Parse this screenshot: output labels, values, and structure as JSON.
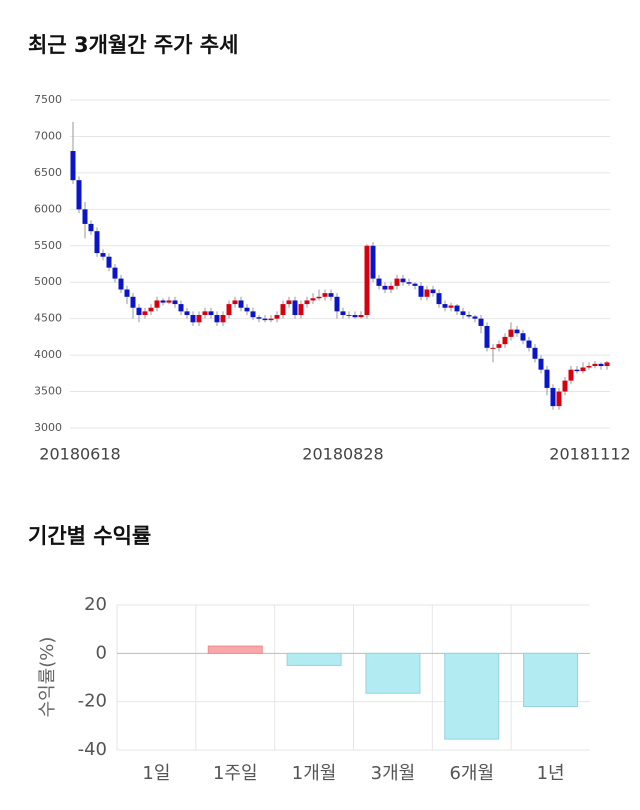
{
  "chart_data": [
    {
      "type": "candlestick",
      "title": "최근 3개월간 주가 추세",
      "categories": [
        "20180618",
        null,
        null,
        null,
        null,
        null,
        null,
        null,
        null,
        null,
        null,
        null,
        null,
        null,
        null,
        null,
        null,
        null,
        null,
        null,
        null,
        null,
        null,
        null,
        null,
        null,
        null,
        null,
        null,
        null,
        null,
        null,
        null,
        null,
        null,
        null,
        null,
        null,
        null,
        null,
        null,
        null,
        null,
        null,
        null,
        "20180828",
        null,
        null,
        null,
        null,
        null,
        null,
        null,
        null,
        null,
        null,
        null,
        null,
        null,
        null,
        null,
        null,
        null,
        null,
        null,
        null,
        null,
        null,
        null,
        null,
        null,
        null,
        null,
        null,
        null,
        null,
        null,
        null,
        null,
        null,
        null,
        null,
        null,
        null,
        null,
        null,
        null,
        null,
        null,
        "20181112"
      ],
      "open": [
        6800,
        6400,
        6000,
        5800,
        5700,
        5400,
        5350,
        5200,
        5050,
        4900,
        4800,
        4650,
        4550,
        4600,
        4650,
        4750,
        4720,
        4750,
        4700,
        4600,
        4550,
        4450,
        4550,
        4600,
        4550,
        4450,
        4550,
        4700,
        4750,
        4650,
        4600,
        4520,
        4500,
        4480,
        4500,
        4550,
        4700,
        4750,
        4550,
        4700,
        4750,
        4780,
        4800,
        4850,
        4800,
        4600,
        4550,
        4550,
        4520,
        4550,
        5500,
        5050,
        4950,
        4900,
        4950,
        5050,
        5000,
        4980,
        4950,
        4800,
        4900,
        4850,
        4700,
        4650,
        4680,
        4600,
        4550,
        4530,
        4500,
        4400,
        4100,
        4100,
        4150,
        4250,
        4350,
        4300,
        4200,
        4100,
        3950,
        3800,
        3550,
        3300,
        3500,
        3650,
        3800,
        3780,
        3830,
        3850,
        3880,
        3850
      ],
      "high": [
        7200,
        6450,
        6100,
        5850,
        5750,
        5450,
        5400,
        5250,
        5100,
        4950,
        4850,
        4700,
        4650,
        4700,
        4800,
        4780,
        4800,
        4800,
        4750,
        4650,
        4600,
        4600,
        4650,
        4650,
        4600,
        4600,
        4750,
        4800,
        4800,
        4700,
        4650,
        4550,
        4550,
        4550,
        4600,
        4750,
        4800,
        4800,
        4750,
        4800,
        4850,
        4900,
        4900,
        4900,
        4850,
        4650,
        4600,
        4600,
        4600,
        5520,
        5550,
        5100,
        5000,
        5000,
        5100,
        5100,
        5050,
        5000,
        5000,
        4950,
        4950,
        4900,
        4750,
        4720,
        4700,
        4650,
        4600,
        4550,
        4550,
        4450,
        4150,
        4200,
        4300,
        4450,
        4400,
        4350,
        4250,
        4150,
        4000,
        3850,
        3600,
        3550,
        3700,
        3850,
        3850,
        3900,
        3900,
        3920,
        3900,
        3920
      ],
      "low": [
        6350,
        5950,
        5600,
        5650,
        5350,
        5300,
        5150,
        5000,
        4850,
        4700,
        4500,
        4450,
        4500,
        4550,
        4600,
        4680,
        4700,
        4650,
        4550,
        4500,
        4400,
        4400,
        4500,
        4500,
        4400,
        4400,
        4500,
        4650,
        4600,
        4550,
        4480,
        4450,
        4450,
        4450,
        4450,
        4500,
        4650,
        4500,
        4500,
        4650,
        4700,
        4750,
        4750,
        4750,
        4500,
        4500,
        4500,
        4500,
        4500,
        4500,
        5000,
        4900,
        4850,
        4850,
        4900,
        4950,
        4950,
        4900,
        4750,
        4750,
        4800,
        4650,
        4600,
        4600,
        4550,
        4500,
        4500,
        4450,
        4300,
        4050,
        3900,
        4050,
        4100,
        4200,
        4250,
        4150,
        4050,
        3900,
        3750,
        3450,
        3250,
        3250,
        3450,
        3600,
        3750,
        3750,
        3800,
        3820,
        3800,
        3800
      ],
      "close": [
        6400,
        6000,
        5800,
        5700,
        5400,
        5350,
        5200,
        5050,
        4900,
        4800,
        4650,
        4550,
        4600,
        4650,
        4750,
        4720,
        4750,
        4700,
        4600,
        4550,
        4450,
        4550,
        4600,
        4550,
        4450,
        4550,
        4700,
        4750,
        4650,
        4600,
        4520,
        4500,
        4480,
        4500,
        4550,
        4700,
        4750,
        4550,
        4700,
        4750,
        4780,
        4800,
        4850,
        4800,
        4600,
        4550,
        4550,
        4520,
        4550,
        5500,
        5050,
        4950,
        4900,
        4950,
        5050,
        5000,
        4980,
        4950,
        4800,
        4900,
        4850,
        4700,
        4650,
        4680,
        4600,
        4550,
        4530,
        4500,
        4400,
        4100,
        4100,
        4150,
        4250,
        4350,
        4300,
        4200,
        4100,
        3950,
        3800,
        3550,
        3300,
        3500,
        3650,
        3800,
        3780,
        3830,
        3850,
        3880,
        3850,
        3900
      ],
      "up_color": "#d7000f",
      "down_color": "#0a14c8",
      "ylim": [
        3000,
        7500
      ],
      "yticks": [
        3000,
        3500,
        4000,
        4500,
        5000,
        5500,
        6000,
        6500,
        7000,
        7500
      ],
      "grid": true
    },
    {
      "type": "bar",
      "title": "기간별 수익률",
      "ylabel": "수익률(%)",
      "categories": [
        "1일",
        "1주일",
        "1개월",
        "3개월",
        "6개월",
        "1년"
      ],
      "values": [
        0,
        3,
        -5,
        -16.5,
        -35.5,
        -22
      ],
      "pos_color": "#f9a8aa",
      "neg_color": "#b2ebf2",
      "ylim": [
        -40,
        20
      ],
      "yticks": [
        -40,
        -20,
        0,
        20
      ],
      "grid": true
    }
  ]
}
